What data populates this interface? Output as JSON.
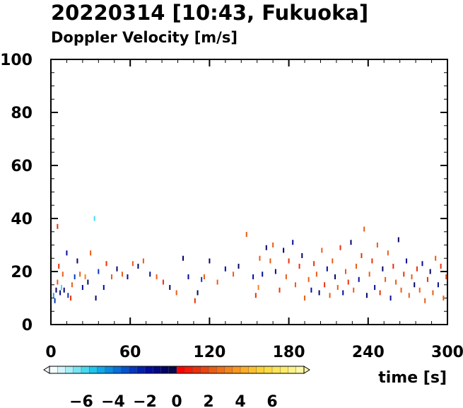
{
  "chart_data": {
    "type": "scatter",
    "title": "20220314 [10:43, Fukuoka]",
    "subtitle": "Doppler Velocity [m/s]",
    "xlabel": "time [s]",
    "ylabel": "",
    "xlim": [
      0,
      300
    ],
    "ylim": [
      0,
      100
    ],
    "xticks": [
      0,
      60,
      120,
      180,
      240,
      300
    ],
    "yticks": [
      0,
      20,
      40,
      60,
      80,
      100
    ],
    "xtick_labels": [
      "0",
      "60",
      "120",
      "180",
      "240",
      "300"
    ],
    "ytick_labels": [
      "0",
      "20",
      "40",
      "60",
      "80",
      "100"
    ],
    "grid": false,
    "colorbar": {
      "range": [
        -8,
        8
      ],
      "tick_values": [
        -6,
        -4,
        -2,
        0,
        2,
        4,
        6
      ],
      "tick_labels": [
        "−6",
        "−4",
        "−2",
        "0",
        "2",
        "4",
        "6"
      ],
      "colors": [
        "#f5fdff",
        "#d4f6fb",
        "#a8eef6",
        "#78e4f2",
        "#48d8ee",
        "#20c4ec",
        "#10a8e8",
        "#0a8ce0",
        "#0870d8",
        "#0654cc",
        "#0438c0",
        "#0220b0",
        "#010c9c",
        "#020880",
        "#040466",
        "#060848",
        "#ff0000",
        "#f51a05",
        "#ec300a",
        "#e84610",
        "#ec5c14",
        "#f07018",
        "#f4841c",
        "#f89820",
        "#fcac26",
        "#fcc02e",
        "#fcd036",
        "#fcdc44",
        "#fce456",
        "#fcec6c",
        "#fcf286",
        "#fcf8a8"
      ]
    },
    "series": [
      {
        "values": [
          [
            2,
            11,
            -5
          ],
          [
            3,
            9,
            -3
          ],
          [
            4,
            13,
            -1
          ],
          [
            5,
            16,
            2
          ],
          [
            5,
            37,
            1
          ],
          [
            6,
            22,
            1
          ],
          [
            7,
            12,
            -2
          ],
          [
            8,
            14,
            -6
          ],
          [
            9,
            19,
            2
          ],
          [
            10,
            13,
            -1
          ],
          [
            12,
            27,
            -2
          ],
          [
            13,
            11,
            -3
          ],
          [
            15,
            10,
            1
          ],
          [
            16,
            15,
            2
          ],
          [
            18,
            18,
            -3
          ],
          [
            20,
            24,
            -1
          ],
          [
            22,
            19,
            2
          ],
          [
            24,
            14,
            -2
          ],
          [
            26,
            18,
            3
          ],
          [
            28,
            16,
            -1
          ],
          [
            30,
            27,
            2
          ],
          [
            33,
            40,
            -6
          ],
          [
            34,
            10,
            -1
          ],
          [
            36,
            20,
            -3
          ],
          [
            40,
            14,
            -2
          ],
          [
            42,
            23,
            1
          ],
          [
            46,
            18,
            2
          ],
          [
            50,
            21,
            -1
          ],
          [
            54,
            19,
            2
          ],
          [
            58,
            18,
            -2
          ],
          [
            62,
            23,
            2
          ],
          [
            66,
            22,
            -1
          ],
          [
            70,
            24,
            2
          ],
          [
            75,
            19,
            -2
          ],
          [
            80,
            18,
            2
          ],
          [
            85,
            16,
            1
          ],
          [
            90,
            14,
            -1
          ],
          [
            95,
            12,
            2
          ],
          [
            100,
            25,
            -1
          ],
          [
            104,
            18,
            -2
          ],
          [
            109,
            9,
            1
          ],
          [
            111,
            12,
            -1
          ],
          [
            114,
            17,
            -3
          ],
          [
            116,
            18,
            2
          ],
          [
            120,
            24,
            -1
          ],
          [
            126,
            16,
            2
          ],
          [
            132,
            21,
            -2
          ],
          [
            138,
            19,
            2
          ],
          [
            142,
            22,
            -1
          ],
          [
            148,
            34,
            2
          ],
          [
            153,
            18,
            -2
          ],
          [
            155,
            11,
            1
          ],
          [
            157,
            14,
            3
          ],
          [
            158,
            25,
            2
          ],
          [
            160,
            19,
            -2
          ],
          [
            163,
            29,
            -1
          ],
          [
            166,
            24,
            2
          ],
          [
            168,
            30,
            2
          ],
          [
            170,
            20,
            -2
          ],
          [
            173,
            13,
            1
          ],
          [
            176,
            28,
            -1
          ],
          [
            178,
            18,
            2
          ],
          [
            180,
            24,
            1
          ],
          [
            183,
            31,
            -2
          ],
          [
            185,
            15,
            2
          ],
          [
            188,
            22,
            1
          ],
          [
            190,
            26,
            -1
          ],
          [
            192,
            10,
            2
          ],
          [
            195,
            17,
            2
          ],
          [
            197,
            13,
            -2
          ],
          [
            199,
            23,
            1
          ],
          [
            201,
            19,
            2
          ],
          [
            203,
            12,
            -1
          ],
          [
            205,
            28,
            2
          ],
          [
            207,
            15,
            1
          ],
          [
            209,
            21,
            -2
          ],
          [
            211,
            11,
            2
          ],
          [
            213,
            24,
            2
          ],
          [
            215,
            18,
            -1
          ],
          [
            217,
            14,
            2
          ],
          [
            219,
            29,
            1
          ],
          [
            221,
            12,
            -2
          ],
          [
            223,
            20,
            2
          ],
          [
            225,
            16,
            1
          ],
          [
            227,
            31,
            -1
          ],
          [
            229,
            13,
            2
          ],
          [
            231,
            22,
            2
          ],
          [
            233,
            17,
            -2
          ],
          [
            235,
            26,
            1
          ],
          [
            237,
            36,
            2
          ],
          [
            239,
            11,
            -1
          ],
          [
            241,
            19,
            2
          ],
          [
            243,
            24,
            1
          ],
          [
            245,
            14,
            -2
          ],
          [
            247,
            30,
            2
          ],
          [
            249,
            12,
            1
          ],
          [
            251,
            21,
            -1
          ],
          [
            253,
            17,
            2
          ],
          [
            255,
            27,
            2
          ],
          [
            257,
            10,
            -2
          ],
          [
            259,
            22,
            1
          ],
          [
            261,
            16,
            2
          ],
          [
            263,
            32,
            -1
          ],
          [
            265,
            13,
            2
          ],
          [
            267,
            19,
            1
          ],
          [
            269,
            24,
            -2
          ],
          [
            271,
            11,
            2
          ],
          [
            273,
            18,
            2
          ],
          [
            275,
            15,
            -1
          ],
          [
            277,
            21,
            1
          ],
          [
            279,
            13,
            2
          ],
          [
            281,
            23,
            -2
          ],
          [
            283,
            9,
            2
          ],
          [
            285,
            17,
            1
          ],
          [
            287,
            20,
            -1
          ],
          [
            289,
            12,
            2
          ],
          [
            291,
            25,
            2
          ],
          [
            293,
            15,
            -2
          ],
          [
            295,
            22,
            1
          ],
          [
            297,
            10,
            2
          ],
          [
            299,
            18,
            2
          ]
        ]
      }
    ]
  }
}
